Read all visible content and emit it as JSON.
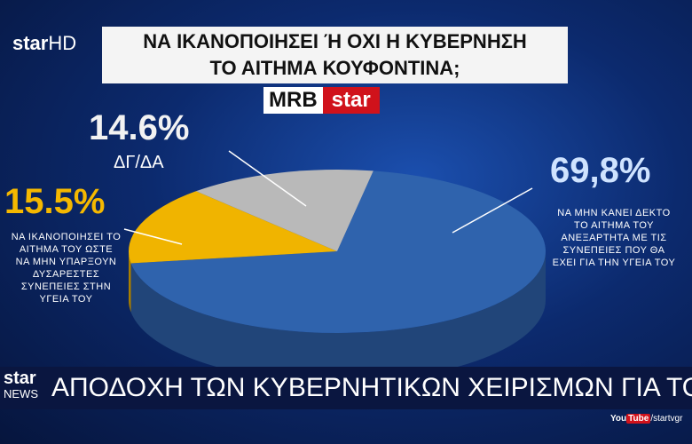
{
  "chart_data": {
    "type": "pie",
    "title": [
      "ΝΑ ΙΚΑΝΟΠΟΙΗΣΕΙ Ή ΟΧΙ Η ΚΥΒΕΡΝΗΣΗ",
      "ΤΟ ΑΙΤΗΜΑ ΚΟΥΦΟΝΤΙΝΑ;"
    ],
    "categories": [
      "ΝΑ ΜΗΝ ΚΑΝΕΙ ΔΕΚΤΟ ΤΟ ΑΙΤΗΜΑ ΤΟΥ ΑΝΕΞΑΡΤΗΤΑ ΜΕ ΤΙΣ ΣΥΝΕΠΕΙΕΣ ΠΟΥ ΘΑ ΕΧΕΙ ΓΙΑ ΤΗΝ ΥΓΕΙΑ ΤΟΥ",
      "ΝΑ ΙΚΑΝΟΠΟΙΗΣΕΙ ΤΟ ΑΙΤΗΜΑ ΤΟΥ ΩΣΤΕ ΝΑ ΜΗΝ ΥΠΑΡΞΟΥΝ ΔΥΣΑΡΕΣΤΕΣ ΣΥΝΕΠΕΙΕΣ ΣΤΗΝ ΥΓΕΙΑ ΤΟΥ",
      "ΔΓ/ΔΑ"
    ],
    "values": [
      69.8,
      15.5,
      14.6
    ],
    "value_labels": [
      "69,8%",
      "15.5%",
      "14.6%"
    ],
    "colors": [
      "#2f63ad",
      "#f0b400",
      "#b9b9b9"
    ]
  },
  "broadcast": {
    "channel": [
      "star",
      "HD"
    ],
    "pollster": [
      "MRB",
      "star"
    ],
    "news_logo": [
      "star",
      "NEWS"
    ],
    "ticker": "ΑΠΟΔΟΧΗ ΤΩΝ ΚΥΒΕΡΝΗΤΙΚΩΝ ΧΕΙΡΙΣΜΩΝ ΓΙΑ ΤΟΝ ΚΟΥΦΟΝΤΙΝΑ",
    "youtube": [
      "You",
      "Tube",
      "/startvgr"
    ]
  }
}
